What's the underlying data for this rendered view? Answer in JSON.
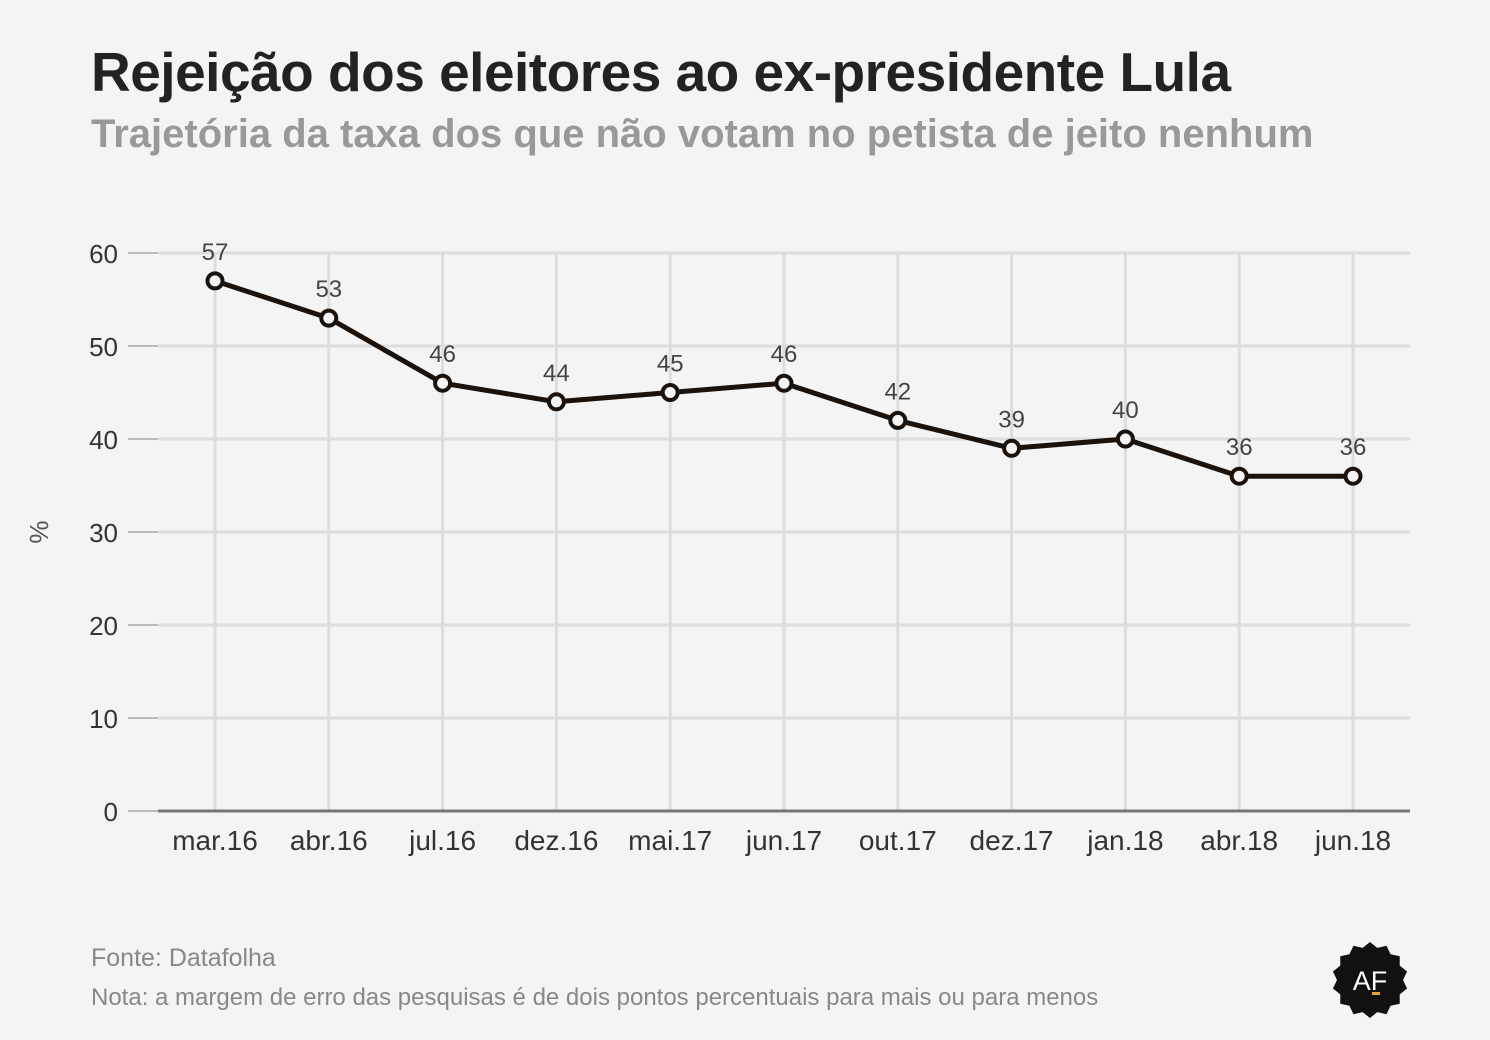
{
  "chart_data": {
    "type": "line",
    "title": "Rejeição dos eleitores ao ex-presidente Lula",
    "subtitle": "Trajetória da taxa dos que não votam no petista de jeito nenhum",
    "ylabel": "%",
    "xlabel": "",
    "ylim": [
      0,
      60
    ],
    "yticks": [
      0,
      10,
      20,
      30,
      40,
      50,
      60
    ],
    "grid": true,
    "categories": [
      "mar.16",
      "abr.16",
      "jul.16",
      "dez.16",
      "mai.17",
      "jun.17",
      "out.17",
      "dez.17",
      "jan.18",
      "abr.18",
      "jun.18"
    ],
    "series": [
      {
        "values": [
          57,
          53,
          46,
          44,
          45,
          46,
          42,
          39,
          40,
          36,
          36
        ]
      }
    ],
    "colors": {
      "line": "#1a120b",
      "grid": "#dddddd",
      "axis": "#777777",
      "tick_text": "#333333",
      "label_text": "#444444"
    }
  },
  "footer": {
    "source": "Fonte: Datafolha",
    "note": "Nota: a margem de erro das pesquisas é de dois pontos percentuais para mais ou para menos"
  },
  "logo": {
    "text": "AF",
    "icon": "af-badge-icon"
  }
}
